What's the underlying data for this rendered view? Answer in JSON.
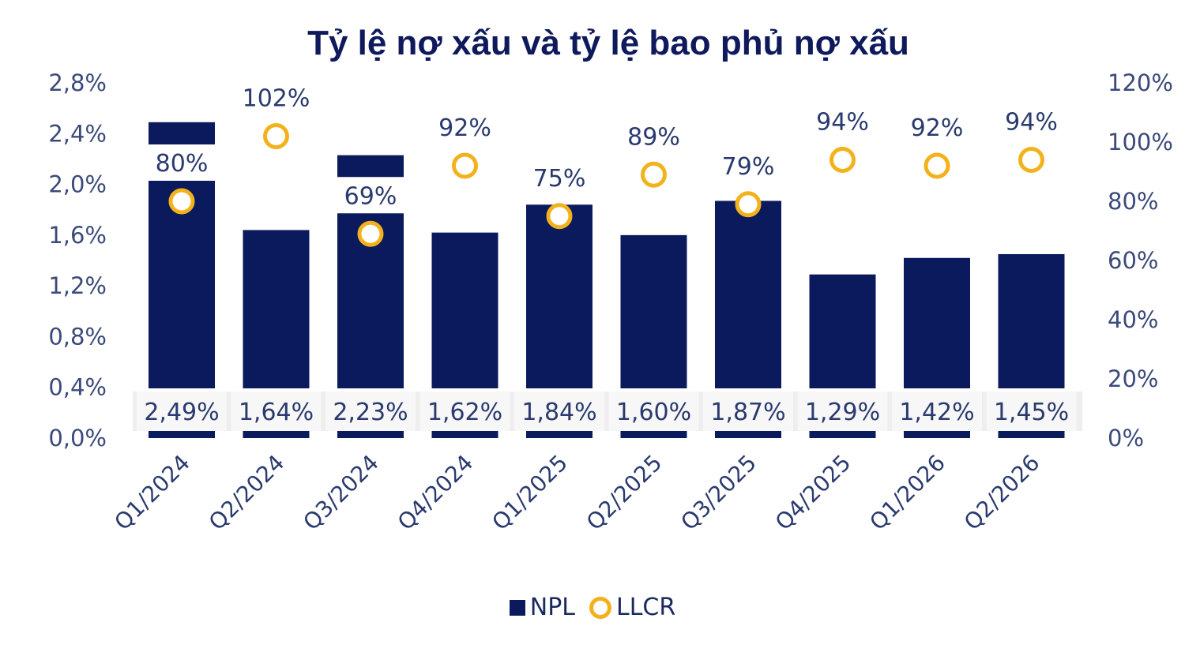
{
  "chart_data": {
    "type": "bar",
    "title": "Tỷ lệ nợ xấu và tỷ lệ bao phủ nợ xấu",
    "categories": [
      "Q1/2024",
      "Q2/2024",
      "Q3/2024",
      "Q4/2024",
      "Q1/2025",
      "Q2/2025",
      "Q3/2025",
      "Q4/2025",
      "Q1/2026",
      "Q2/2026"
    ],
    "series": [
      {
        "name": "NPL",
        "type": "bar",
        "axis": "left",
        "values": [
          2.49,
          1.64,
          2.23,
          1.62,
          1.84,
          1.6,
          1.87,
          1.29,
          1.42,
          1.45
        ],
        "labels": [
          "2,49%",
          "1,64%",
          "2,23%",
          "1,62%",
          "1,84%",
          "1,60%",
          "1,87%",
          "1,29%",
          "1,42%",
          "1,45%"
        ],
        "color": "#0a1a5c"
      },
      {
        "name": "LLCR",
        "type": "scatter",
        "axis": "right",
        "values": [
          80,
          102,
          69,
          92,
          75,
          89,
          79,
          94,
          92,
          94
        ],
        "labels": [
          "80%",
          "102%",
          "69%",
          "92%",
          "75%",
          "89%",
          "79%",
          "94%",
          "92%",
          "94%"
        ],
        "color": "#f3b21c"
      }
    ],
    "y_left": {
      "ylim": [
        0,
        2.8
      ],
      "ticks": [
        "0,0%",
        "0,4%",
        "0,8%",
        "1,2%",
        "1,6%",
        "2,0%",
        "2,4%",
        "2,8%"
      ]
    },
    "y_right": {
      "ylim": [
        0,
        120
      ],
      "ticks": [
        "0%",
        "20%",
        "40%",
        "60%",
        "80%",
        "100%",
        "120%"
      ]
    },
    "legend": {
      "position": "bottom",
      "items": [
        "NPL",
        "LLCR"
      ]
    }
  }
}
